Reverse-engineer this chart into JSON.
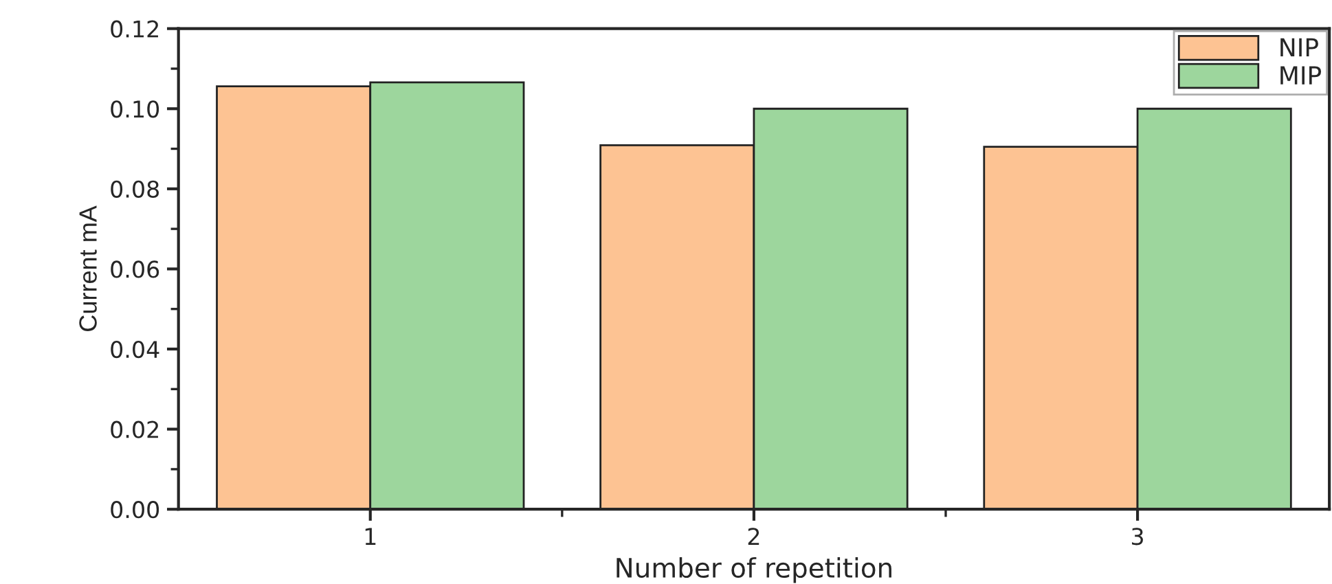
{
  "chart_data": {
    "type": "bar",
    "xlabel": "Number of repetition",
    "ylabel": "Current mA",
    "categories": [
      "1",
      "2",
      "3"
    ],
    "series": [
      {
        "name": "NIP",
        "color": "#fdc393",
        "values": [
          0.1056,
          0.0909,
          0.0905
        ]
      },
      {
        "name": "MIP",
        "color": "#9dd69d",
        "values": [
          0.1066,
          0.1,
          0.1
        ]
      }
    ],
    "ylim": [
      0,
      0.12
    ],
    "yticks": [
      {
        "value": 0,
        "label": "0.00"
      },
      {
        "value": 0.02,
        "label": "0.02"
      },
      {
        "value": 0.04,
        "label": "0.04"
      },
      {
        "value": 0.06,
        "label": "0.06"
      },
      {
        "value": 0.08,
        "label": "0.08"
      },
      {
        "value": 0.1,
        "label": "0.10"
      },
      {
        "value": 0.12,
        "label": "0.12"
      }
    ],
    "grid": false,
    "legend": "top right"
  }
}
